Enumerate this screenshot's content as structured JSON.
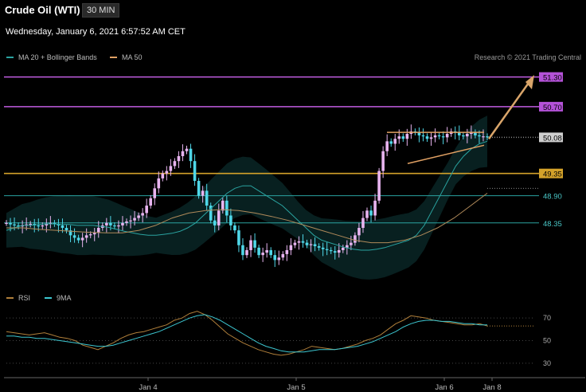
{
  "header": {
    "title": "Crude Oil (WTI)",
    "timeframe": "30 MIN",
    "datetime": "Wednesday, January 6, 2021 6:57:52 AM CET",
    "credit": "Research © 2021 Trading Central"
  },
  "legend": {
    "ma20": {
      "label": "MA 20 + Bollinger Bands",
      "color": "#2aa3a0"
    },
    "ma50": {
      "label": "MA 50",
      "color": "#e0a063"
    },
    "rsi": {
      "label": "RSI",
      "color": "#b07f3a"
    },
    "rsi9": {
      "label": "9MA",
      "color": "#3cc6d0"
    }
  },
  "chart_data": [
    {
      "type": "candlestick",
      "x_labels": [
        "Jan 4",
        "Jan 5",
        "Jan 6",
        "Jan 8"
      ],
      "ylim": [
        47.3,
        51.6
      ],
      "levels": [
        {
          "value": 51.3,
          "label": "51.30",
          "kind": "resistance"
        },
        {
          "value": 50.7,
          "label": "50.70",
          "kind": "resistance"
        },
        {
          "value": 50.08,
          "label": "50.08",
          "kind": "last"
        },
        {
          "value": 49.35,
          "label": "49.35",
          "kind": "pivot"
        },
        {
          "value": 48.9,
          "label": "48.90",
          "kind": "support"
        },
        {
          "value": 48.35,
          "label": "48.35",
          "kind": "support"
        }
      ],
      "close": [
        48.35,
        48.32,
        48.3,
        48.28,
        48.3,
        48.32,
        48.33,
        48.3,
        48.28,
        48.3,
        48.34,
        48.35,
        48.33,
        48.3,
        48.25,
        48.2,
        48.1,
        48.05,
        48.0,
        48.05,
        48.1,
        48.12,
        48.15,
        48.25,
        48.3,
        48.35,
        48.3,
        48.28,
        48.3,
        48.35,
        48.38,
        48.4,
        48.45,
        48.5,
        48.55,
        48.7,
        48.85,
        49.05,
        49.25,
        49.35,
        49.4,
        49.5,
        49.6,
        49.7,
        49.8,
        49.85,
        49.6,
        49.2,
        48.9,
        49.0,
        48.7,
        48.4,
        48.3,
        48.6,
        48.8,
        48.5,
        48.3,
        48.2,
        47.9,
        47.7,
        47.8,
        48.0,
        47.85,
        47.7,
        47.75,
        47.8,
        47.7,
        47.6,
        47.65,
        47.72,
        47.8,
        47.9,
        47.95,
        47.98,
        47.95,
        47.9,
        47.92,
        47.88,
        47.85,
        47.82,
        47.8,
        47.78,
        47.75,
        47.8,
        47.85,
        47.9,
        47.95,
        48.1,
        48.25,
        48.45,
        48.6,
        48.5,
        48.8,
        49.4,
        49.8,
        50.0,
        49.95,
        50.05,
        50.1,
        50.05,
        50.15,
        50.2,
        50.18,
        50.12,
        50.1,
        50.05,
        50.08,
        50.12,
        50.1,
        50.08,
        50.15,
        50.2,
        50.18,
        50.12,
        50.1,
        50.15,
        50.18,
        50.12,
        50.1,
        50.1,
        50.08
      ],
      "ma20": [
        48.2,
        48.25,
        48.3,
        48.3,
        48.32,
        48.33,
        48.33,
        48.32,
        48.32,
        48.3,
        48.3,
        48.3,
        48.28,
        48.26,
        48.22,
        48.18,
        48.15,
        48.12,
        48.1,
        48.1,
        48.12,
        48.14,
        48.18,
        48.25,
        48.35,
        48.5,
        48.65,
        48.8,
        48.95,
        49.05,
        49.1,
        49.1,
        49.0,
        48.9,
        48.8,
        48.7,
        48.55,
        48.4,
        48.25,
        48.1,
        48.0,
        47.95,
        47.9,
        47.85,
        47.82,
        47.8,
        47.8,
        47.82,
        47.85,
        47.9,
        47.95,
        48.0,
        48.1,
        48.3,
        48.6,
        48.9,
        49.2,
        49.5,
        49.7,
        49.85,
        49.95,
        50.0
      ],
      "ma50": [
        48.25,
        48.25,
        48.22,
        48.2,
        48.18,
        48.16,
        48.15,
        48.15,
        48.2,
        48.3,
        48.45,
        48.55,
        48.6,
        48.62,
        48.6,
        48.55,
        48.48,
        48.4,
        48.3,
        48.2,
        48.1,
        48.0,
        47.95,
        47.95,
        48.0,
        48.1,
        48.25,
        48.45,
        48.7,
        48.95
      ],
      "rsi": [
        58,
        57,
        56,
        55,
        56,
        57,
        55,
        53,
        52,
        50,
        46,
        44,
        42,
        45,
        48,
        52,
        55,
        57,
        58,
        60,
        62,
        64,
        68,
        70,
        74,
        76,
        73,
        68,
        62,
        56,
        52,
        48,
        45,
        42,
        40,
        38,
        37,
        38,
        40,
        42,
        45,
        44,
        43,
        42,
        43,
        45,
        47,
        50,
        52,
        55,
        60,
        65,
        68,
        72,
        71,
        70,
        68,
        67,
        66,
        65,
        64,
        64,
        65,
        63
      ],
      "rsi_ma": [
        54,
        54,
        53,
        53,
        52,
        52,
        51,
        50,
        49,
        48,
        47,
        46,
        45,
        45,
        46,
        48,
        50,
        52,
        54,
        56,
        58,
        61,
        64,
        67,
        70,
        72,
        73,
        71,
        68,
        64,
        60,
        56,
        52,
        48,
        45,
        43,
        41,
        40,
        40,
        40,
        41,
        42,
        42,
        42,
        43,
        44,
        45,
        47,
        49,
        52,
        55,
        58,
        62,
        65,
        67,
        68,
        68,
        67,
        67,
        66,
        65,
        65,
        64,
        64
      ],
      "rsi_ticks": [
        70,
        50,
        30
      ]
    }
  ]
}
